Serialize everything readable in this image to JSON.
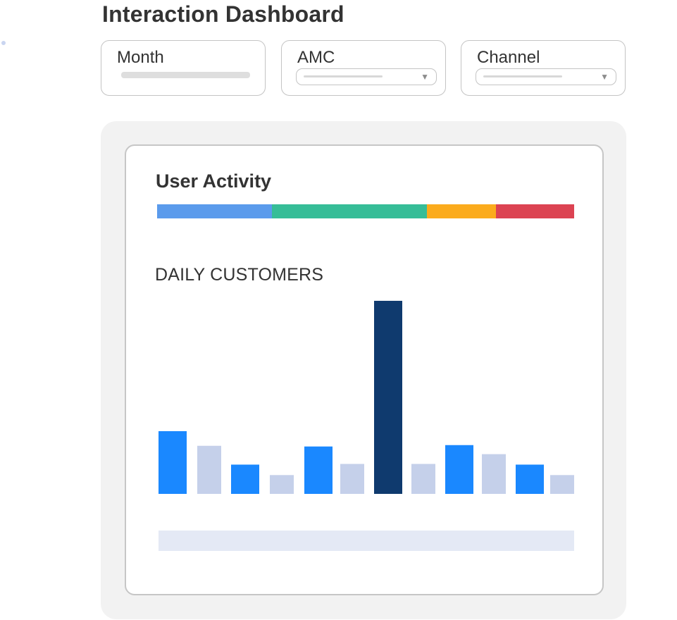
{
  "header": {
    "title": "Interaction Dashboard"
  },
  "filters": [
    {
      "label": "Month",
      "kind": "text"
    },
    {
      "label": "AMC",
      "kind": "select",
      "arrow": "▼"
    },
    {
      "label": "Channel",
      "kind": "select",
      "arrow": "▼"
    }
  ],
  "card": {
    "title": "User Activity",
    "activity_segments": [
      {
        "color": "#5b9bec",
        "share": 0.275
      },
      {
        "color": "#36bd97",
        "share": 0.372
      },
      {
        "color": "#fbab1c",
        "share": 0.166
      },
      {
        "color": "#dc4352",
        "share": 0.187
      }
    ]
  },
  "chart_data": {
    "type": "bar",
    "title": "DAILY CUSTOMERS",
    "values": [
      90,
      69,
      42,
      27,
      68,
      43,
      277,
      43,
      70,
      57,
      42,
      27
    ],
    "colors": [
      "#1a88ff",
      "#c5d0ea",
      "#1a88ff",
      "#c5d0ea",
      "#1a88ff",
      "#c5d0ea",
      "#0f3a6e",
      "#c5d0ea",
      "#1a88ff",
      "#c5d0ea",
      "#1a88ff",
      "#c5d0ea"
    ],
    "ylim": [
      0,
      280
    ]
  }
}
